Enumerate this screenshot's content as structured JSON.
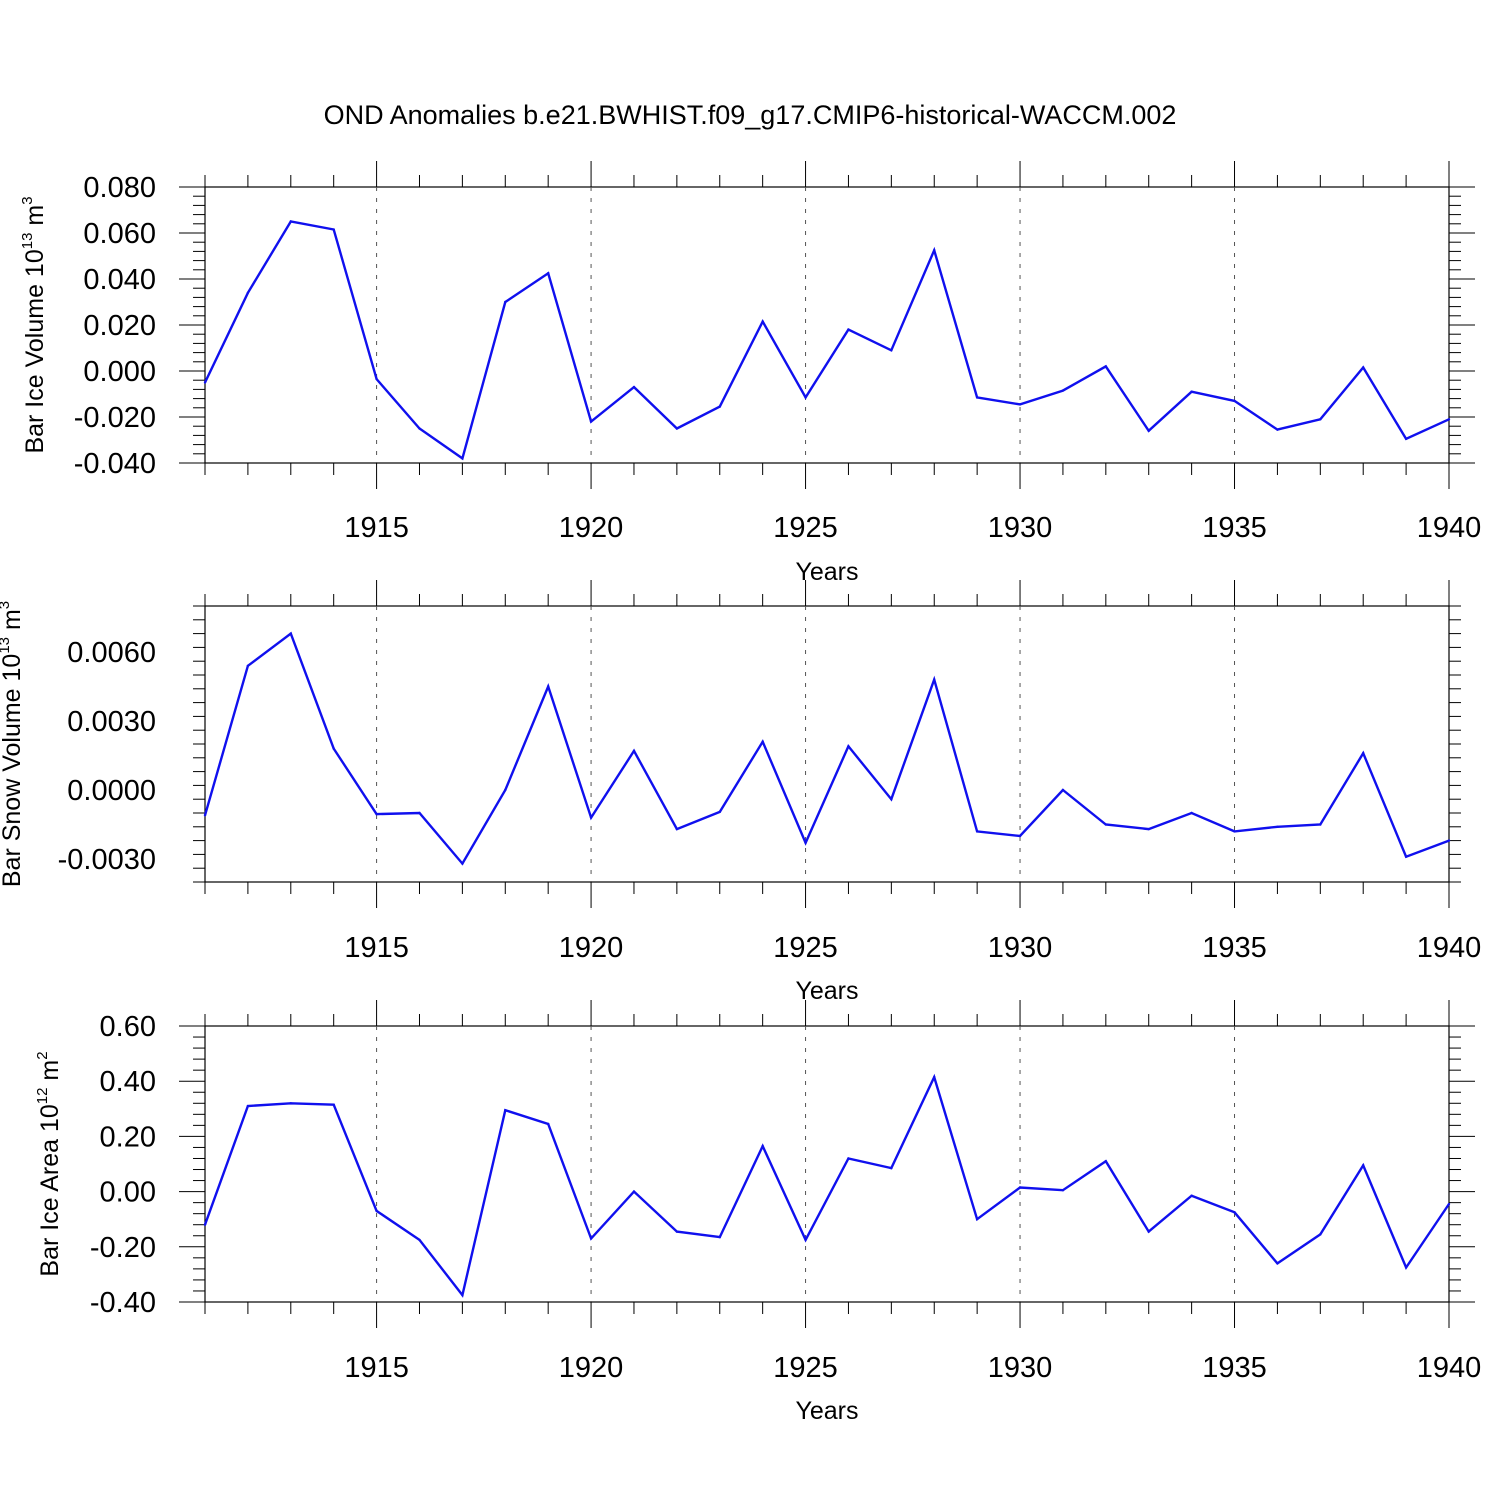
{
  "title": "OND Anomalies b.e21.BWHIST.f09_g17.CMIP6-historical-WACCM.002",
  "colors": {
    "line": "#1010ee",
    "axis": "#000000",
    "grid": "#555555"
  },
  "chart_data": [
    {
      "type": "line",
      "ylabel_main": "Bar Ice Volume 10",
      "ylabel_exp": "13",
      "ylabel_unit": " m",
      "ylabel_unit_exp": "3",
      "xlabel": "Years",
      "xlim": [
        1911,
        1940
      ],
      "ylim": [
        -0.04,
        0.08
      ],
      "yticks": [
        "0.080",
        "0.060",
        "0.040",
        "0.020",
        "0.000",
        "-0.020",
        "-0.040"
      ],
      "ytick_values": [
        0.08,
        0.06,
        0.04,
        0.02,
        0.0,
        -0.02,
        -0.04
      ],
      "xticks": [
        "1915",
        "1920",
        "1925",
        "1930",
        "1935",
        "1940"
      ],
      "xtick_values": [
        1915,
        1920,
        1925,
        1930,
        1935,
        1940
      ],
      "grid": "dashed vertical at major x ticks",
      "x": [
        1911,
        1912,
        1913,
        1914,
        1915,
        1916,
        1917,
        1918,
        1919,
        1920,
        1921,
        1922,
        1923,
        1924,
        1925,
        1926,
        1927,
        1928,
        1929,
        1930,
        1931,
        1932,
        1933,
        1934,
        1935,
        1936,
        1937,
        1938,
        1939,
        1940
      ],
      "series": [
        {
          "values": [
            -0.005,
            0.034,
            0.065,
            0.0615,
            -0.0035,
            -0.025,
            -0.038,
            0.03,
            0.0425,
            -0.022,
            -0.007,
            -0.025,
            -0.0155,
            0.0215,
            -0.0115,
            0.018,
            0.009,
            0.0525,
            -0.0115,
            -0.0145,
            -0.0085,
            0.002,
            -0.026,
            -0.009,
            -0.013,
            -0.0255,
            -0.021,
            0.0015,
            -0.0295,
            -0.021
          ]
        }
      ]
    },
    {
      "type": "line",
      "ylabel_main": "Bar Snow Volume 10",
      "ylabel_exp": "13",
      "ylabel_unit": " m",
      "ylabel_unit_exp": "3",
      "xlabel": "Years",
      "xlim": [
        1911,
        1940
      ],
      "ylim": [
        -0.004,
        0.008
      ],
      "yticks": [
        "0.0060",
        "0.0030",
        "0.0000",
        "-0.0030"
      ],
      "ytick_values": [
        0.006,
        0.003,
        0.0,
        -0.003
      ],
      "xticks": [
        "1915",
        "1920",
        "1925",
        "1930",
        "1935",
        "1940"
      ],
      "xtick_values": [
        1915,
        1920,
        1925,
        1930,
        1935,
        1940
      ],
      "grid": "dashed vertical at major x ticks",
      "x": [
        1911,
        1912,
        1913,
        1914,
        1915,
        1916,
        1917,
        1918,
        1919,
        1920,
        1921,
        1922,
        1923,
        1924,
        1925,
        1926,
        1927,
        1928,
        1929,
        1930,
        1931,
        1932,
        1933,
        1934,
        1935,
        1936,
        1937,
        1938,
        1939,
        1940
      ],
      "series": [
        {
          "values": [
            -0.0011,
            0.0054,
            0.0068,
            0.0018,
            -0.00105,
            -0.001,
            -0.0032,
            0.0,
            0.0045,
            -0.0012,
            0.0017,
            -0.0017,
            -0.00095,
            0.0021,
            -0.0023,
            0.0019,
            -0.0004,
            0.0048,
            -0.0018,
            -0.002,
            0.0,
            -0.0015,
            -0.0017,
            -0.001,
            -0.0018,
            -0.0016,
            -0.0015,
            0.0016,
            -0.0029,
            -0.0022
          ]
        }
      ]
    },
    {
      "type": "line",
      "ylabel_main": "Bar Ice Area 10",
      "ylabel_exp": "12",
      "ylabel_unit": " m",
      "ylabel_unit_exp": "2",
      "xlabel": "Years",
      "xlim": [
        1911,
        1940
      ],
      "ylim": [
        -0.4,
        0.6
      ],
      "yticks": [
        "0.60",
        "0.40",
        "0.20",
        "0.00",
        "-0.20",
        "-0.40"
      ],
      "ytick_values": [
        0.6,
        0.4,
        0.2,
        0.0,
        -0.2,
        -0.4
      ],
      "xticks": [
        "1915",
        "1920",
        "1925",
        "1930",
        "1935",
        "1940"
      ],
      "xtick_values": [
        1915,
        1920,
        1925,
        1930,
        1935,
        1940
      ],
      "grid": "dashed vertical at major x ticks",
      "x": [
        1911,
        1912,
        1913,
        1914,
        1915,
        1916,
        1917,
        1918,
        1919,
        1920,
        1921,
        1922,
        1923,
        1924,
        1925,
        1926,
        1927,
        1928,
        1929,
        1930,
        1931,
        1932,
        1933,
        1934,
        1935,
        1936,
        1937,
        1938,
        1939,
        1940
      ],
      "series": [
        {
          "values": [
            -0.12,
            0.31,
            0.32,
            0.315,
            -0.07,
            -0.175,
            -0.375,
            0.295,
            0.245,
            -0.17,
            0.0,
            -0.145,
            -0.165,
            0.165,
            -0.175,
            0.12,
            0.085,
            0.415,
            -0.1,
            0.015,
            0.005,
            0.11,
            -0.145,
            -0.015,
            -0.075,
            -0.26,
            -0.155,
            0.095,
            -0.275,
            -0.045
          ]
        }
      ]
    }
  ]
}
